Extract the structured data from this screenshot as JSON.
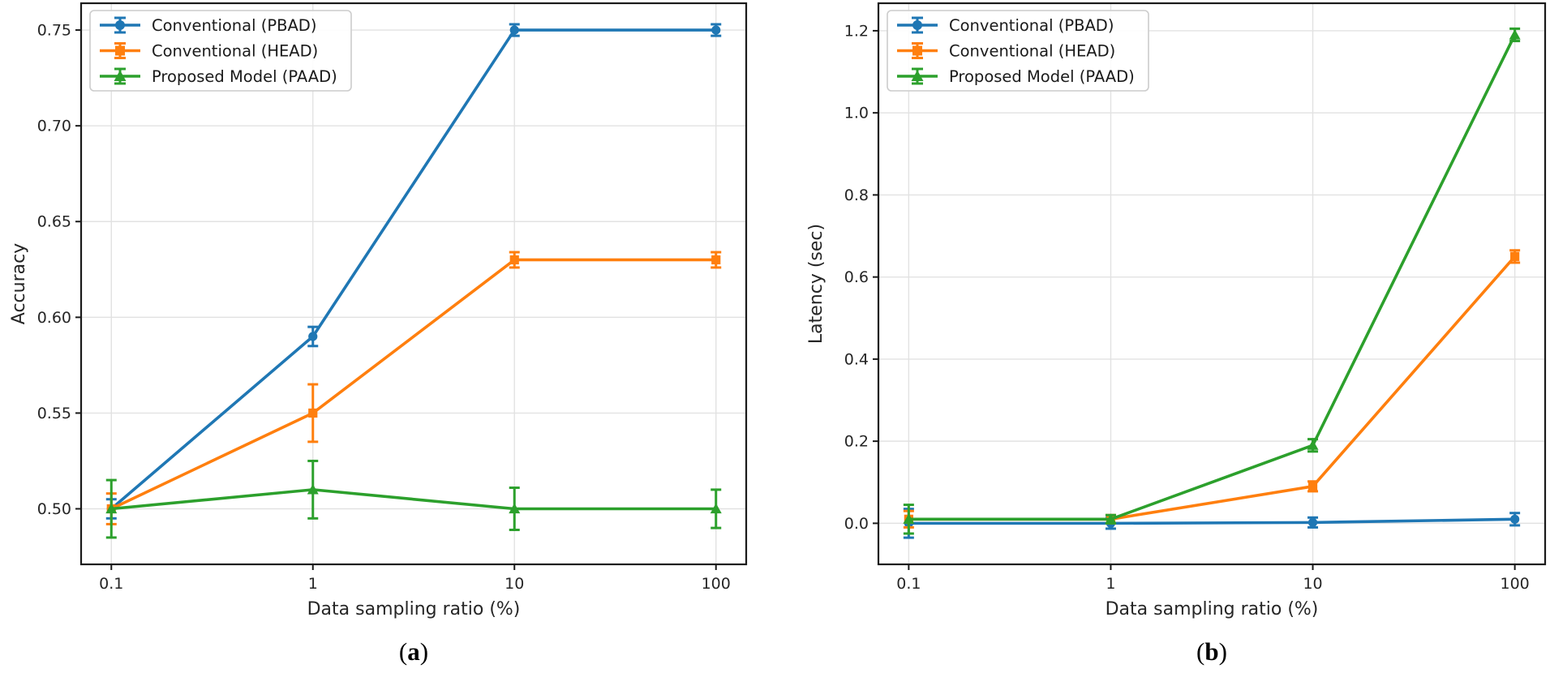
{
  "figure": {
    "background": "#ffffff",
    "spine_color": "#1a1a1a",
    "grid_color": "#e2e2e2",
    "tick_label_color": "#262626",
    "legend_border_color": "#cccccc"
  },
  "chart_data": [
    {
      "type": "line",
      "title": "",
      "xlabel": "Data sampling ratio (%)",
      "ylabel": "Accuracy",
      "caption": {
        "pre": "(",
        "letter": "a",
        "post": ")"
      },
      "xscale": "log",
      "x": [
        0.1,
        1,
        10,
        100
      ],
      "xtick_labels": [
        "0.1",
        "1",
        "10",
        "100"
      ],
      "x_range_log": [
        -1.15,
        2.15
      ],
      "ylim": [
        0.471,
        0.764
      ],
      "yticks": [
        0.5,
        0.55,
        0.6,
        0.65,
        0.7,
        0.75
      ],
      "ytick_labels": [
        "0.50",
        "0.55",
        "0.60",
        "0.65",
        "0.70",
        "0.75"
      ],
      "grid": true,
      "legend_position": "upper-left",
      "series": [
        {
          "name": "Conventional (PBAD)",
          "color": "#1f77b4",
          "marker": "circle",
          "values": [
            0.5,
            0.59,
            0.75,
            0.75
          ],
          "errors": [
            0.005,
            0.005,
            0.003,
            0.003
          ]
        },
        {
          "name": "Conventional (HEAD)",
          "color": "#ff7f0e",
          "marker": "square",
          "values": [
            0.5,
            0.55,
            0.63,
            0.63
          ],
          "errors": [
            0.008,
            0.015,
            0.004,
            0.004
          ]
        },
        {
          "name": "Proposed Model (PAAD)",
          "color": "#2ca02c",
          "marker": "triangle",
          "values": [
            0.5,
            0.51,
            0.5,
            0.5
          ],
          "errors": [
            0.015,
            0.015,
            0.011,
            0.01
          ]
        }
      ]
    },
    {
      "type": "line",
      "title": "",
      "xlabel": "Data sampling ratio (%)",
      "ylabel": "Latency (sec)",
      "caption": {
        "pre": "(",
        "letter": "b",
        "post": ")"
      },
      "xscale": "log",
      "x": [
        0.1,
        1,
        10,
        100
      ],
      "xtick_labels": [
        "0.1",
        "1",
        "10",
        "100"
      ],
      "x_range_log": [
        -1.15,
        2.15
      ],
      "ylim": [
        -0.1,
        1.267
      ],
      "yticks": [
        0.0,
        0.2,
        0.4,
        0.6,
        0.8,
        1.0,
        1.2
      ],
      "ytick_labels": [
        "0.0",
        "0.2",
        "0.4",
        "0.6",
        "0.8",
        "1.0",
        "1.2"
      ],
      "grid": true,
      "legend_position": "upper-left",
      "series": [
        {
          "name": "Conventional (PBAD)",
          "color": "#1f77b4",
          "marker": "circle",
          "values": [
            0.0,
            0.0,
            0.002,
            0.01
          ],
          "errors": [
            0.035,
            0.013,
            0.012,
            0.015
          ]
        },
        {
          "name": "Conventional (HEAD)",
          "color": "#ff7f0e",
          "marker": "square",
          "values": [
            0.01,
            0.01,
            0.09,
            0.65
          ],
          "errors": [
            0.02,
            0.01,
            0.012,
            0.015
          ]
        },
        {
          "name": "Proposed Model (PAAD)",
          "color": "#2ca02c",
          "marker": "triangle",
          "values": [
            0.01,
            0.01,
            0.19,
            1.19
          ],
          "errors": [
            0.035,
            0.01,
            0.015,
            0.015
          ]
        }
      ]
    }
  ]
}
